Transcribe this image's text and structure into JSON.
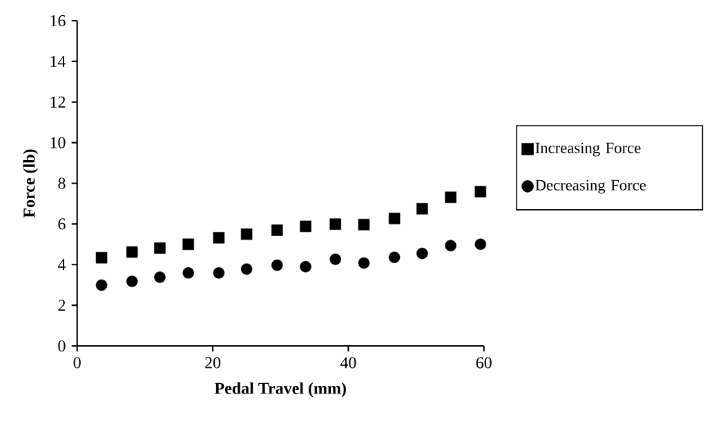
{
  "chart_data": {
    "type": "scatter",
    "xlabel": "Pedal Travel (mm)",
    "ylabel": "Force  (lb)",
    "x": [
      3.6,
      8.1,
      12.2,
      16.4,
      20.9,
      25.0,
      29.5,
      33.7,
      38.1,
      42.3,
      46.8,
      50.9,
      55.1,
      59.5
    ],
    "series": [
      {
        "name": "Increasing Force",
        "color": "#000000",
        "marker": "square",
        "values": [
          4.34,
          4.62,
          4.81,
          5.0,
          5.32,
          5.5,
          5.69,
          5.88,
          5.99,
          5.97,
          6.27,
          6.75,
          7.31,
          7.59
        ]
      },
      {
        "name": "Decreasing Force",
        "color": "#000000",
        "marker": "circle",
        "values": [
          2.99,
          3.18,
          3.38,
          3.59,
          3.59,
          3.78,
          3.97,
          3.9,
          4.26,
          4.08,
          4.36,
          4.55,
          4.93,
          5.0
        ]
      }
    ],
    "xlim": [
      0,
      60
    ],
    "xticks": [
      0,
      20,
      40,
      60
    ],
    "ylim": [
      0,
      16
    ],
    "yticks": [
      0,
      2,
      4,
      6,
      8,
      10,
      12,
      14,
      16
    ],
    "grid": false,
    "legend": "right"
  }
}
